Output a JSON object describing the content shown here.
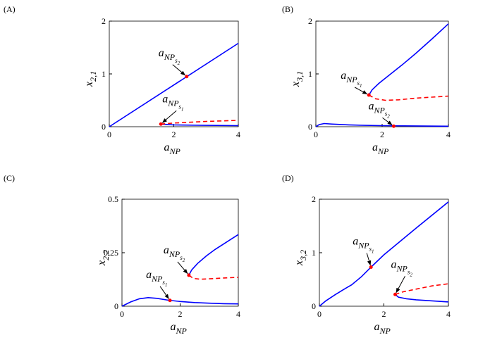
{
  "chart_data": [
    {
      "type": "line",
      "panel": "(A)",
      "xlabel": [
        "a",
        "NP"
      ],
      "ylabel": [
        "x",
        "2,1"
      ],
      "xlim": [
        0,
        4
      ],
      "ylim": [
        0,
        2
      ],
      "xticks": [
        0,
        2,
        4
      ],
      "yticks": [
        0,
        1,
        2
      ],
      "series": [
        {
          "color": "#0000ff",
          "dash": false,
          "x": [
            0,
            4
          ],
          "values": [
            0,
            1.58
          ]
        },
        {
          "color": "#0000ff",
          "dash": false,
          "x": [
            1.6,
            2,
            3,
            4
          ],
          "values": [
            0.05,
            0.035,
            0.025,
            0.02
          ]
        },
        {
          "color": "#ff0000",
          "dash": true,
          "x": [
            1.6,
            2,
            3,
            4
          ],
          "values": [
            0.05,
            0.07,
            0.1,
            0.12
          ]
        }
      ],
      "points": [
        {
          "x": 1.6,
          "y": 0.05,
          "color": "#ff0000"
        },
        {
          "x": 2.4,
          "y": 0.95,
          "color": "#ff0000"
        }
      ],
      "annotations": [
        {
          "text": [
            "a",
            "NP",
            "s",
            "1"
          ],
          "point": 0
        },
        {
          "text": [
            "a",
            "NP",
            "s",
            "2"
          ],
          "point": 1
        }
      ]
    },
    {
      "type": "line",
      "panel": "(B)",
      "xlabel": [
        "a",
        "NP"
      ],
      "ylabel": [
        "x",
        "3,1"
      ],
      "xlim": [
        0,
        4
      ],
      "ylim": [
        0,
        2
      ],
      "xticks": [
        0,
        2,
        4
      ],
      "yticks": [
        0,
        1,
        2
      ],
      "series": [
        {
          "color": "#0000ff",
          "dash": false,
          "x": [
            0,
            0.1,
            0.25,
            0.5,
            1,
            1.5,
            2,
            3,
            4
          ],
          "values": [
            0,
            0.04,
            0.06,
            0.05,
            0.035,
            0.025,
            0.02,
            0.015,
            0.01
          ]
        },
        {
          "color": "#0000ff",
          "dash": false,
          "x": [
            1.6,
            1.7,
            1.9,
            2.2,
            2.6,
            3,
            3.5,
            4
          ],
          "values": [
            0.6,
            0.7,
            0.82,
            0.97,
            1.17,
            1.38,
            1.66,
            1.95
          ]
        },
        {
          "color": "#ff0000",
          "dash": true,
          "x": [
            1.6,
            1.8,
            2.1,
            2.5,
            3,
            3.5,
            4
          ],
          "values": [
            0.6,
            0.53,
            0.5,
            0.51,
            0.54,
            0.56,
            0.58
          ]
        }
      ],
      "points": [
        {
          "x": 1.6,
          "y": 0.6,
          "color": "#ff0000"
        },
        {
          "x": 2.35,
          "y": 0.01,
          "color": "#ff0000"
        }
      ],
      "annotations": [
        {
          "text": [
            "a",
            "NP",
            "s",
            "1"
          ],
          "point": 0
        },
        {
          "text": [
            "a",
            "NP",
            "s",
            "2"
          ],
          "point": 1
        }
      ]
    },
    {
      "type": "line",
      "panel": "(C)",
      "xlabel": [
        "a",
        "NP"
      ],
      "ylabel": [
        "x",
        "2,2"
      ],
      "xlim": [
        0,
        4
      ],
      "ylim": [
        0,
        0.5
      ],
      "xticks": [
        0,
        2,
        4
      ],
      "yticks": [
        0,
        0.25,
        0.5
      ],
      "series": [
        {
          "color": "#0000ff",
          "dash": false,
          "x": [
            0,
            0.3,
            0.6,
            0.9,
            1.2,
            1.6,
            2,
            2.5,
            3,
            3.5,
            4
          ],
          "values": [
            0,
            0.02,
            0.035,
            0.04,
            0.037,
            0.028,
            0.022,
            0.017,
            0.014,
            0.012,
            0.011
          ]
        },
        {
          "color": "#0000ff",
          "dash": false,
          "x": [
            2.3,
            2.4,
            2.6,
            2.9,
            3.2,
            3.6,
            4
          ],
          "values": [
            0.145,
            0.17,
            0.2,
            0.235,
            0.265,
            0.3,
            0.335
          ]
        },
        {
          "color": "#ff0000",
          "dash": true,
          "x": [
            2.3,
            2.45,
            2.7,
            3,
            3.5,
            4
          ],
          "values": [
            0.145,
            0.13,
            0.126,
            0.128,
            0.132,
            0.135
          ]
        }
      ],
      "points": [
        {
          "x": 1.65,
          "y": 0.027,
          "color": "#ff0000"
        },
        {
          "x": 2.3,
          "y": 0.145,
          "color": "#ff0000"
        }
      ],
      "annotations": [
        {
          "text": [
            "a",
            "NP",
            "s",
            "1"
          ],
          "point": 0
        },
        {
          "text": [
            "a",
            "NP",
            "s",
            "2"
          ],
          "point": 1
        }
      ]
    },
    {
      "type": "line",
      "panel": "(D)",
      "xlabel": [
        "a",
        "NP"
      ],
      "ylabel": [
        "x",
        "3,2"
      ],
      "xlim": [
        0,
        4
      ],
      "ylim": [
        0,
        2
      ],
      "xticks": [
        0,
        2,
        4
      ],
      "yticks": [
        0,
        1,
        2
      ],
      "series": [
        {
          "color": "#0000ff",
          "dash": false,
          "x": [
            0,
            0.2,
            0.5,
            0.8,
            1,
            1.3,
            1.6,
            2,
            3,
            4
          ],
          "values": [
            0,
            0.1,
            0.22,
            0.33,
            0.4,
            0.55,
            0.73,
            0.96,
            1.46,
            1.95
          ]
        },
        {
          "color": "#0000ff",
          "dash": false,
          "x": [
            2.35,
            2.45,
            2.7,
            3,
            3.5,
            4
          ],
          "values": [
            0.22,
            0.17,
            0.14,
            0.12,
            0.1,
            0.08
          ]
        },
        {
          "color": "#ff0000",
          "dash": true,
          "x": [
            2.35,
            2.6,
            3,
            3.5,
            4
          ],
          "values": [
            0.22,
            0.27,
            0.32,
            0.38,
            0.42
          ]
        }
      ],
      "points": [
        {
          "x": 1.6,
          "y": 0.73,
          "color": "#ff0000"
        },
        {
          "x": 2.35,
          "y": 0.22,
          "color": "#ff0000"
        }
      ],
      "annotations": [
        {
          "text": [
            "a",
            "NP",
            "s",
            "1"
          ],
          "point": 0
        },
        {
          "text": [
            "a",
            "NP",
            "s",
            "2"
          ],
          "point": 1
        }
      ]
    }
  ]
}
